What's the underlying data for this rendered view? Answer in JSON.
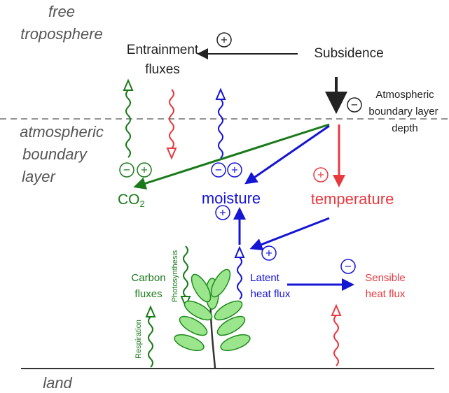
{
  "regions": {
    "free_troposphere": [
      "free",
      "troposphere"
    ],
    "boundary_layer": [
      "atmospheric",
      "boundary",
      "layer"
    ],
    "land": "land"
  },
  "labels": {
    "entrainment": [
      "Entrainment",
      "fluxes"
    ],
    "subsidence": "Subsidence",
    "abl_depth": [
      "Atmospheric",
      "boundary layer",
      "depth"
    ],
    "co2": {
      "base": "CO",
      "sub": "2"
    },
    "moisture": "moisture",
    "temperature": "temperature",
    "carbon_fluxes": [
      "Carbon",
      "fluxes"
    ],
    "photosynthesis": "Photosynthesis",
    "respiration": "Respiration",
    "latent": [
      "Latent",
      "heat flux"
    ],
    "sensible": [
      "Sensible",
      "heat flux"
    ]
  },
  "signs": [
    "+",
    "−",
    "−",
    "+",
    "−",
    "+",
    "+",
    "+",
    "+",
    "−"
  ]
}
